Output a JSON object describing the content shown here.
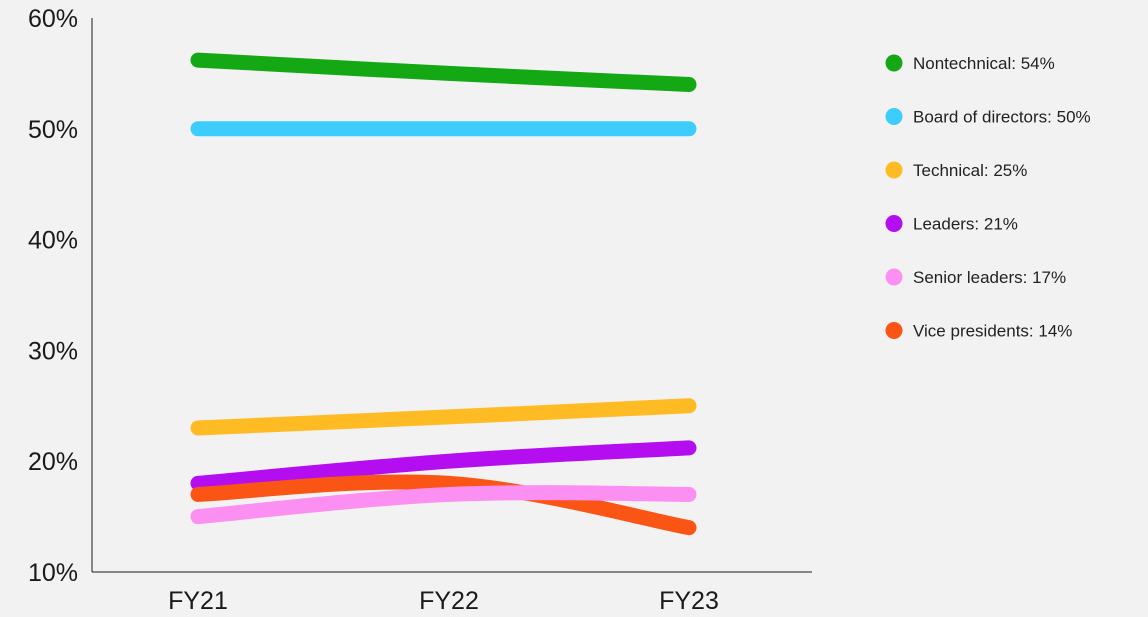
{
  "chart_data": {
    "type": "line",
    "title": "",
    "xlabel": "",
    "ylabel": "",
    "categories": [
      "FY21",
      "FY22",
      "FY23"
    ],
    "ylim": [
      10,
      60
    ],
    "y_ticks": [
      10,
      20,
      30,
      40,
      50,
      60
    ],
    "y_tick_labels": [
      "10%",
      "20%",
      "30%",
      "40%",
      "50%",
      "60%"
    ],
    "grid": false,
    "legend_position": "right",
    "series": [
      {
        "name": "Nontechnical",
        "legend_label": "Nontechnical: 54%",
        "color": "#14a814",
        "values": [
          56.2,
          55.0,
          54.0
        ]
      },
      {
        "name": "Board of directors",
        "legend_label": "Board of directors: 50%",
        "color": "#3ccdfc",
        "values": [
          50.0,
          50.0,
          50.0
        ]
      },
      {
        "name": "Technical",
        "legend_label": "Technical: 25%",
        "color": "#febb23",
        "values": [
          23.0,
          24.0,
          25.0
        ]
      },
      {
        "name": "Leaders",
        "legend_label": "Leaders: 21%",
        "color": "#b40ef0",
        "values": [
          18.0,
          20.0,
          21.2
        ]
      },
      {
        "name": "Vice presidents",
        "legend_label": "Vice presidents: 14%",
        "color": "#fb5515",
        "values": [
          17.0,
          18.0,
          14.0
        ]
      },
      {
        "name": "Senior leaders",
        "legend_label": "Senior leaders: 17%",
        "color": "#fc8ff2",
        "values": [
          15.0,
          17.0,
          17.0
        ]
      }
    ],
    "legend_order": [
      "Nontechnical",
      "Board of directors",
      "Technical",
      "Leaders",
      "Senior leaders",
      "Vice presidents"
    ]
  }
}
